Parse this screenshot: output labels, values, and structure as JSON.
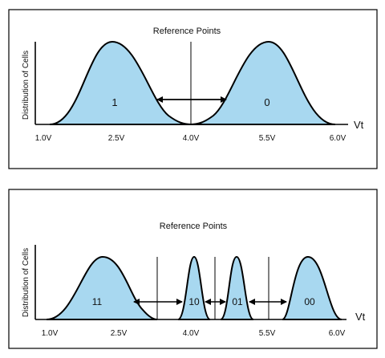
{
  "panels": [
    {
      "ref_label": "Reference Points",
      "y_label": "Distribution of Cells",
      "axis_var": "Vt",
      "ticks": [
        "1.0V",
        "2.5V",
        "4.0V",
        "5.5V",
        "6.0V"
      ],
      "states": [
        "1",
        "0"
      ]
    },
    {
      "ref_label": "Reference Points",
      "y_label": "Distribution of Cells",
      "axis_var": "Vt",
      "ticks": [
        "1.0V",
        "2.5V",
        "4.0V",
        "5.5V",
        "6.0V"
      ],
      "states": [
        "11",
        "10",
        "01",
        "00"
      ]
    }
  ],
  "colors": {
    "fill": "#a8d8f0",
    "stroke": "#000000"
  }
}
